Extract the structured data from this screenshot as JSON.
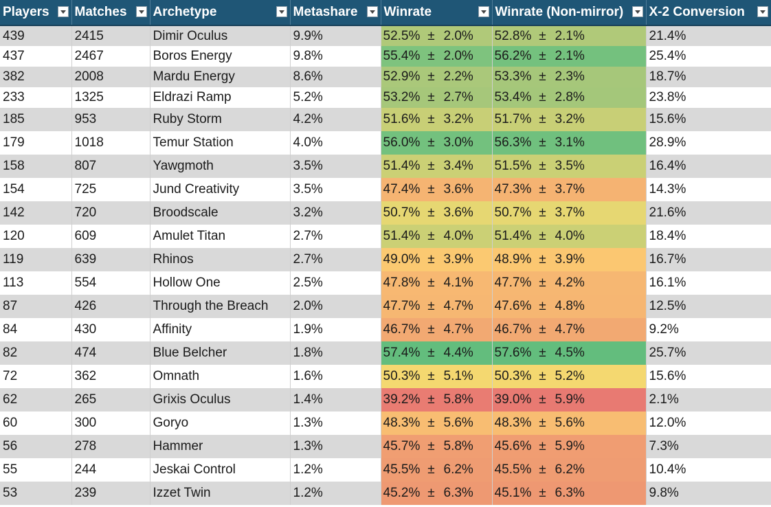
{
  "headers": [
    "Players",
    "Matches",
    "Archetype",
    "Metashare",
    "Winrate",
    "Winrate (Non-mirror)",
    "X-2 Conversion"
  ],
  "header_style": {
    "background": "#1f5676",
    "text": "#ffffff"
  },
  "stripe_colors": [
    "#d9d9d9",
    "#ffffff"
  ],
  "rows": [
    {
      "players": "439",
      "matches": "2415",
      "archetype": "Dimir Oculus",
      "metashare": "9.9%",
      "wr": "52.5%",
      "wr_err": "2.0%",
      "nm": "52.8%",
      "nm_err": "2.1%",
      "x2": "21.4%",
      "wr_color": "#b0c979",
      "nm_color": "#b0c979"
    },
    {
      "players": "437",
      "matches": "2467",
      "archetype": "Boros Energy",
      "metashare": "9.8%",
      "wr": "55.4%",
      "wr_err": "2.0%",
      "nm": "56.2%",
      "nm_err": "2.1%",
      "x2": "25.4%",
      "wr_color": "#7ec37e",
      "nm_color": "#74c17e"
    },
    {
      "players": "382",
      "matches": "2008",
      "archetype": "Mardu Energy",
      "metashare": "8.6%",
      "wr": "52.9%",
      "wr_err": "2.2%",
      "nm": "53.3%",
      "nm_err": "2.3%",
      "x2": "18.7%",
      "wr_color": "#aac87a",
      "nm_color": "#a6c77a"
    },
    {
      "players": "233",
      "matches": "1325",
      "archetype": "Eldrazi Ramp",
      "metashare": "5.2%",
      "wr": "53.2%",
      "wr_err": "2.7%",
      "nm": "53.4%",
      "nm_err": "2.8%",
      "x2": "23.8%",
      "wr_color": "#a6c77a",
      "nm_color": "#a4c77a"
    },
    {
      "players": "185",
      "matches": "953",
      "archetype": "Ruby Storm",
      "metashare": "4.2%",
      "wr": "51.6%",
      "wr_err": "3.2%",
      "nm": "51.7%",
      "nm_err": "3.2%",
      "x2": "15.6%",
      "wr_color": "#c8cf76",
      "nm_color": "#c8cf76"
    },
    {
      "players": "179",
      "matches": "1018",
      "archetype": "Temur Station",
      "metashare": "4.0%",
      "wr": "56.0%",
      "wr_err": "3.0%",
      "nm": "56.3%",
      "nm_err": "3.1%",
      "x2": "28.9%",
      "wr_color": "#73c17e",
      "nm_color": "#70c07e"
    },
    {
      "players": "158",
      "matches": "807",
      "archetype": "Yawgmoth",
      "metashare": "3.5%",
      "wr": "51.4%",
      "wr_err": "3.4%",
      "nm": "51.5%",
      "nm_err": "3.5%",
      "x2": "16.4%",
      "wr_color": "#cbd075",
      "nm_color": "#cad075"
    },
    {
      "players": "154",
      "matches": "725",
      "archetype": "Jund Creativity",
      "metashare": "3.5%",
      "wr": "47.4%",
      "wr_err": "3.6%",
      "nm": "47.3%",
      "nm_err": "3.7%",
      "x2": "14.3%",
      "wr_color": "#f5b472",
      "nm_color": "#f5b372"
    },
    {
      "players": "142",
      "matches": "720",
      "archetype": "Broodscale",
      "metashare": "3.2%",
      "wr": "50.7%",
      "wr_err": "3.6%",
      "nm": "50.7%",
      "nm_err": "3.7%",
      "x2": "21.6%",
      "wr_color": "#e6d772",
      "nm_color": "#e6d772"
    },
    {
      "players": "120",
      "matches": "609",
      "archetype": "Amulet Titan",
      "metashare": "2.7%",
      "wr": "51.4%",
      "wr_err": "4.0%",
      "nm": "51.4%",
      "nm_err": "4.0%",
      "x2": "18.4%",
      "wr_color": "#cbd075",
      "nm_color": "#cbd075"
    },
    {
      "players": "119",
      "matches": "639",
      "archetype": "Rhinos",
      "metashare": "2.7%",
      "wr": "49.0%",
      "wr_err": "3.9%",
      "nm": "48.9%",
      "nm_err": "3.9%",
      "x2": "16.7%",
      "wr_color": "#fbc971",
      "nm_color": "#fbc771"
    },
    {
      "players": "113",
      "matches": "554",
      "archetype": "Hollow One",
      "metashare": "2.5%",
      "wr": "47.8%",
      "wr_err": "4.1%",
      "nm": "47.7%",
      "nm_err": "4.2%",
      "x2": "16.1%",
      "wr_color": "#f7b872",
      "nm_color": "#f6b772"
    },
    {
      "players": "87",
      "matches": "426",
      "archetype": "Through the Breach",
      "metashare": "2.0%",
      "wr": "47.7%",
      "wr_err": "4.7%",
      "nm": "47.6%",
      "nm_err": "4.8%",
      "x2": "12.5%",
      "wr_color": "#f6b772",
      "nm_color": "#f6b672"
    },
    {
      "players": "84",
      "matches": "430",
      "archetype": "Affinity",
      "metashare": "1.9%",
      "wr": "46.7%",
      "wr_err": "4.7%",
      "nm": "46.7%",
      "nm_err": "4.7%",
      "x2": "9.2%",
      "wr_color": "#f2a972",
      "nm_color": "#f2a972"
    },
    {
      "players": "82",
      "matches": "474",
      "archetype": "Blue Belcher",
      "metashare": "1.8%",
      "wr": "57.4%",
      "wr_err": "4.4%",
      "nm": "57.6%",
      "nm_err": "4.5%",
      "x2": "25.7%",
      "wr_color": "#63bd7d",
      "nm_color": "#63bd7d"
    },
    {
      "players": "72",
      "matches": "362",
      "archetype": "Omnath",
      "metashare": "1.6%",
      "wr": "50.3%",
      "wr_err": "5.1%",
      "nm": "50.3%",
      "nm_err": "5.2%",
      "x2": "15.6%",
      "wr_color": "#f4d870",
      "nm_color": "#f4d870"
    },
    {
      "players": "62",
      "matches": "265",
      "archetype": "Grixis Oculus",
      "metashare": "1.4%",
      "wr": "39.2%",
      "wr_err": "5.8%",
      "nm": "39.0%",
      "nm_err": "5.9%",
      "x2": "2.1%",
      "wr_color": "#e97c72",
      "nm_color": "#e87a72"
    },
    {
      "players": "60",
      "matches": "300",
      "archetype": "Goryo",
      "metashare": "1.3%",
      "wr": "48.3%",
      "wr_err": "5.6%",
      "nm": "48.3%",
      "nm_err": "5.6%",
      "x2": "12.0%",
      "wr_color": "#f8bd72",
      "nm_color": "#f8bd72"
    },
    {
      "players": "56",
      "matches": "278",
      "archetype": "Hammer",
      "metashare": "1.3%",
      "wr": "45.7%",
      "wr_err": "5.8%",
      "nm": "45.6%",
      "nm_err": "5.9%",
      "x2": "7.3%",
      "wr_color": "#f09e72",
      "nm_color": "#f09d72"
    },
    {
      "players": "55",
      "matches": "244",
      "archetype": "Jeskai Control",
      "metashare": "1.2%",
      "wr": "45.5%",
      "wr_err": "6.2%",
      "nm": "45.5%",
      "nm_err": "6.2%",
      "x2": "10.4%",
      "wr_color": "#ef9c72",
      "nm_color": "#ef9c72"
    },
    {
      "players": "53",
      "matches": "239",
      "archetype": "Izzet Twin",
      "metashare": "1.2%",
      "wr": "45.2%",
      "wr_err": "6.3%",
      "nm": "45.1%",
      "nm_err": "6.3%",
      "x2": "9.8%",
      "wr_color": "#ee9972",
      "nm_color": "#ee9872"
    }
  ]
}
